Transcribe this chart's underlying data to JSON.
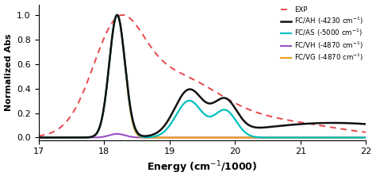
{
  "xlabel": "Energy (cm$^{-1}$/1000)",
  "ylabel": "Normalized Abs",
  "xlim": [
    17,
    22
  ],
  "ylim": [
    -0.02,
    1.08
  ],
  "xticks": [
    17,
    18,
    19,
    20,
    21,
    22
  ],
  "exp_color": "#e8474c",
  "fcah_color": "#111111",
  "fcas_color": "#00bfbf",
  "fcvh_color": "#9b4fc8",
  "fcvg_color": "#e8a020"
}
